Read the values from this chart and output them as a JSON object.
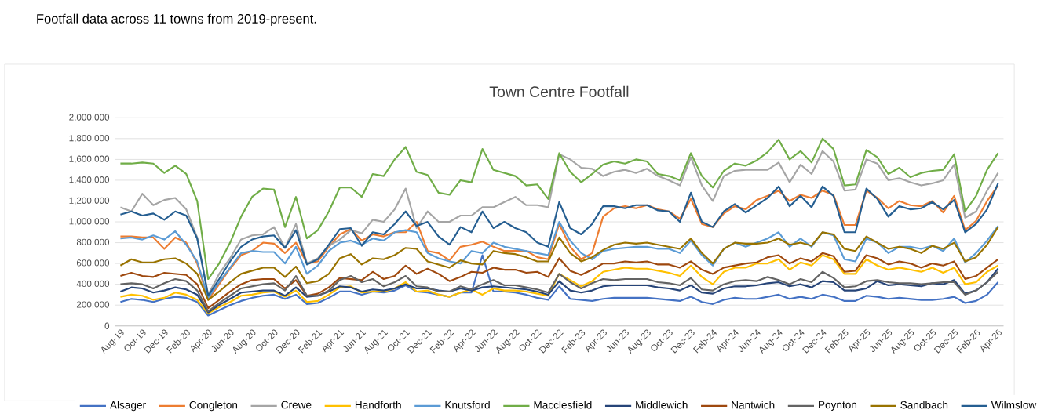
{
  "chart_data": {
    "type": "line",
    "title": "Town Centre Footfall",
    "annotations": [
      "Footfall data across 11 towns from 2019-present."
    ],
    "categories": [
      "Aug-19",
      null,
      "Oct-19",
      null,
      "Dec-19",
      null,
      "Feb-20",
      null,
      "Apr-20",
      null,
      "Jun-20",
      null,
      "Aug-20",
      null,
      "Oct-20",
      null,
      "Dec-20",
      null,
      "Feb-21",
      null,
      "Apr-21",
      null,
      "Jun-21",
      null,
      "Aug-21",
      null,
      "Oct-21",
      null,
      "Dec-21",
      null,
      "Feb-22",
      null,
      "Apr-22",
      null,
      "Jun-22",
      null,
      "Aug-22",
      null,
      "Oct-22",
      null,
      "Dec-22",
      null,
      "Feb-23",
      null,
      "Apr-23",
      null,
      "Jun-23",
      null,
      "Aug-23",
      null,
      "Oct-23",
      null,
      "Dec-23",
      null,
      "Feb-24",
      null,
      "Apr-24",
      null,
      "Jun-24",
      null,
      "Aug-24",
      null,
      "Oct-24",
      null,
      "Dec-24",
      null,
      "Feb-25",
      null,
      "Apr-25",
      null,
      "Jun-25",
      null,
      "Aug-25",
      null,
      "Oct-25",
      null,
      "Dec-25",
      null,
      "Feb-26",
      null,
      "Apr-26"
    ],
    "ylim": [
      0,
      2000000
    ],
    "yticks": [
      0,
      {
        "value": 200000,
        "label": "200,000"
      },
      {
        "value": 400000,
        "label": "400,000"
      },
      {
        "value": 600000,
        "label": "600,000"
      },
      {
        "value": 800000,
        "label": "800,000"
      },
      {
        "value": 1000000,
        "label": "1,000,000"
      },
      {
        "value": 1200000,
        "label": "1,200,000"
      },
      {
        "value": 1400000,
        "label": "1,400,000"
      },
      {
        "value": 1600000,
        "label": "1,600,000"
      },
      {
        "value": 1800000,
        "label": "1,800,000"
      },
      {
        "value": 2000000,
        "label": "2,000,000"
      }
    ],
    "grid": "y",
    "legend": "bottom",
    "line_style": "solid",
    "series": [
      {
        "name": "Alsager",
        "color": "#4472c4",
        "values": [
          230000.0,
          260000.0,
          250000.0,
          230000.0,
          260000.0,
          280000.0,
          270000.0,
          230000.0,
          100000.0,
          150000.0,
          200000.0,
          240000.0,
          270000.0,
          290000.0,
          300000.0,
          260000.0,
          300000.0,
          210000.0,
          220000.0,
          270000.0,
          330000.0,
          330000.0,
          300000.0,
          330000.0,
          320000.0,
          340000.0,
          390000.0,
          330000.0,
          320000.0,
          300000.0,
          280000.0,
          320000.0,
          320000.0,
          680000.0,
          330000.0,
          330000.0,
          320000.0,
          300000.0,
          270000.0,
          250000.0,
          380000.0,
          260000.0,
          250000.0,
          240000.0,
          260000.0,
          270000.0,
          270000.0,
          270000.0,
          270000.0,
          260000.0,
          250000.0,
          240000.0,
          280000.0,
          230000.0,
          210000.0,
          250000.0,
          270000.0,
          260000.0,
          260000.0,
          280000.0,
          300000.0,
          260000.0,
          280000.0,
          260000.0,
          300000.0,
          280000.0,
          240000.0,
          240000.0,
          290000.0,
          280000.0,
          260000.0,
          270000.0,
          260000.0,
          250000.0,
          250000.0,
          260000.0,
          280000.0,
          220000.0,
          240000.0,
          300000.0,
          420000.0
        ]
      },
      {
        "name": "Congleton",
        "color": "#ed7d31",
        "values": [
          860000.0,
          860000.0,
          850000.0,
          850000.0,
          740000.0,
          850000.0,
          800000.0,
          600000.0,
          250000.0,
          400000.0,
          550000.0,
          680000.0,
          720000.0,
          800000.0,
          790000.0,
          700000.0,
          800000.0,
          600000.0,
          620000.0,
          760000.0,
          880000.0,
          930000.0,
          820000.0,
          880000.0,
          860000.0,
          900000.0,
          900000.0,
          1000000.0,
          720000.0,
          700000.0,
          630000.0,
          760000.0,
          780000.0,
          810000.0,
          760000.0,
          720000.0,
          720000.0,
          720000.0,
          660000.0,
          640000.0,
          980000.0,
          760000.0,
          640000.0,
          700000.0,
          1050000.0,
          1130000.0,
          1150000.0,
          1130000.0,
          1160000.0,
          1120000.0,
          1100000.0,
          1030000.0,
          1220000.0,
          980000.0,
          950000.0,
          1080000.0,
          1150000.0,
          1120000.0,
          1210000.0,
          1250000.0,
          1300000.0,
          1200000.0,
          1260000.0,
          1230000.0,
          1300000.0,
          1260000.0,
          970000.0,
          970000.0,
          1300000.0,
          1230000.0,
          1130000.0,
          1200000.0,
          1160000.0,
          1150000.0,
          1200000.0,
          1090000.0,
          1250000.0,
          920000.0,
          1010000.0,
          1200000.0,
          1350000.0
        ]
      },
      {
        "name": "Crewe",
        "color": "#a5a5a5",
        "values": [
          1140000.0,
          1100000.0,
          1270000.0,
          1160000.0,
          1210000.0,
          1230000.0,
          1120000.0,
          850000.0,
          300000.0,
          500000.0,
          650000.0,
          830000.0,
          870000.0,
          880000.0,
          950000.0,
          750000.0,
          980000.0,
          600000.0,
          650000.0,
          770000.0,
          830000.0,
          920000.0,
          890000.0,
          1020000.0,
          1000000.0,
          1120000.0,
          1320000.0,
          940000.0,
          1100000.0,
          1000000.0,
          1000000.0,
          1060000.0,
          1060000.0,
          1140000.0,
          1140000.0,
          1190000.0,
          1240000.0,
          1160000.0,
          1160000.0,
          1140000.0,
          1650000.0,
          1600000.0,
          1520000.0,
          1510000.0,
          1440000.0,
          1480000.0,
          1500000.0,
          1470000.0,
          1510000.0,
          1440000.0,
          1400000.0,
          1350000.0,
          1620000.0,
          1350000.0,
          1200000.0,
          1440000.0,
          1490000.0,
          1500000.0,
          1500000.0,
          1500000.0,
          1570000.0,
          1380000.0,
          1550000.0,
          1460000.0,
          1680000.0,
          1580000.0,
          1300000.0,
          1310000.0,
          1600000.0,
          1560000.0,
          1400000.0,
          1420000.0,
          1380000.0,
          1350000.0,
          1370000.0,
          1400000.0,
          1550000.0,
          1040000.0,
          1100000.0,
          1300000.0,
          1470000.0
        ]
      },
      {
        "name": "Handforth",
        "color": "#ffc000",
        "values": [
          280000.0,
          300000.0,
          290000.0,
          250000.0,
          270000.0,
          320000.0,
          300000.0,
          250000.0,
          120000.0,
          180000.0,
          230000.0,
          290000.0,
          300000.0,
          320000.0,
          330000.0,
          280000.0,
          340000.0,
          230000.0,
          240000.0,
          300000.0,
          370000.0,
          380000.0,
          320000.0,
          330000.0,
          330000.0,
          360000.0,
          420000.0,
          330000.0,
          340000.0,
          300000.0,
          280000.0,
          320000.0,
          350000.0,
          300000.0,
          360000.0,
          340000.0,
          340000.0,
          330000.0,
          310000.0,
          290000.0,
          500000.0,
          440000.0,
          380000.0,
          430000.0,
          520000.0,
          540000.0,
          560000.0,
          550000.0,
          550000.0,
          530000.0,
          510000.0,
          480000.0,
          580000.0,
          470000.0,
          400000.0,
          520000.0,
          560000.0,
          560000.0,
          600000.0,
          600000.0,
          640000.0,
          540000.0,
          610000.0,
          580000.0,
          680000.0,
          640000.0,
          500000.0,
          500000.0,
          640000.0,
          580000.0,
          540000.0,
          560000.0,
          540000.0,
          520000.0,
          560000.0,
          510000.0,
          560000.0,
          400000.0,
          420000.0,
          520000.0,
          580000.0
        ]
      },
      {
        "name": "Knutsford",
        "color": "#5b9bd5",
        "values": [
          840000.0,
          850000.0,
          830000.0,
          870000.0,
          830000.0,
          910000.0,
          780000.0,
          620000.0,
          270000.0,
          420000.0,
          560000.0,
          700000.0,
          720000.0,
          710000.0,
          710000.0,
          600000.0,
          760000.0,
          500000.0,
          580000.0,
          720000.0,
          800000.0,
          820000.0,
          780000.0,
          840000.0,
          820000.0,
          900000.0,
          920000.0,
          900000.0,
          700000.0,
          650000.0,
          620000.0,
          600000.0,
          720000.0,
          700000.0,
          800000.0,
          760000.0,
          740000.0,
          720000.0,
          700000.0,
          680000.0,
          1000000.0,
          820000.0,
          700000.0,
          640000.0,
          720000.0,
          740000.0,
          750000.0,
          760000.0,
          760000.0,
          740000.0,
          740000.0,
          700000.0,
          820000.0,
          680000.0,
          580000.0,
          740000.0,
          800000.0,
          760000.0,
          800000.0,
          840000.0,
          900000.0,
          760000.0,
          840000.0,
          760000.0,
          900000.0,
          870000.0,
          640000.0,
          620000.0,
          840000.0,
          800000.0,
          700000.0,
          760000.0,
          760000.0,
          740000.0,
          770000.0,
          720000.0,
          840000.0,
          610000.0,
          700000.0,
          820000.0,
          960000.0
        ]
      },
      {
        "name": "Macclesfield",
        "color": "#70ad47",
        "values": [
          1560000.0,
          1560000.0,
          1570000.0,
          1560000.0,
          1470000.0,
          1540000.0,
          1460000.0,
          1200000.0,
          450000.0,
          600000.0,
          800000.0,
          1050000.0,
          1240000.0,
          1320000.0,
          1310000.0,
          950000.0,
          1240000.0,
          840000.0,
          920000.0,
          1100000.0,
          1330000.0,
          1330000.0,
          1240000.0,
          1460000.0,
          1440000.0,
          1600000.0,
          1720000.0,
          1480000.0,
          1450000.0,
          1280000.0,
          1260000.0,
          1400000.0,
          1380000.0,
          1700000.0,
          1500000.0,
          1470000.0,
          1440000.0,
          1350000.0,
          1360000.0,
          1220000.0,
          1660000.0,
          1480000.0,
          1380000.0,
          1460000.0,
          1550000.0,
          1580000.0,
          1560000.0,
          1600000.0,
          1580000.0,
          1460000.0,
          1440000.0,
          1400000.0,
          1660000.0,
          1440000.0,
          1330000.0,
          1490000.0,
          1560000.0,
          1540000.0,
          1590000.0,
          1670000.0,
          1790000.0,
          1600000.0,
          1680000.0,
          1570000.0,
          1800000.0,
          1700000.0,
          1350000.0,
          1360000.0,
          1690000.0,
          1620000.0,
          1460000.0,
          1520000.0,
          1430000.0,
          1470000.0,
          1490000.0,
          1500000.0,
          1650000.0,
          1100000.0,
          1250000.0,
          1500000.0,
          1660000.0
        ]
      },
      {
        "name": "Middlewich",
        "color": "#264478",
        "values": [
          330000.0,
          370000.0,
          360000.0,
          320000.0,
          340000.0,
          370000.0,
          350000.0,
          300000.0,
          130000.0,
          200000.0,
          260000.0,
          320000.0,
          330000.0,
          340000.0,
          340000.0,
          290000.0,
          370000.0,
          280000.0,
          290000.0,
          330000.0,
          380000.0,
          370000.0,
          330000.0,
          350000.0,
          340000.0,
          360000.0,
          400000.0,
          360000.0,
          360000.0,
          340000.0,
          330000.0,
          360000.0,
          340000.0,
          370000.0,
          380000.0,
          370000.0,
          360000.0,
          350000.0,
          330000.0,
          300000.0,
          430000.0,
          340000.0,
          320000.0,
          340000.0,
          380000.0,
          390000.0,
          390000.0,
          390000.0,
          390000.0,
          370000.0,
          360000.0,
          340000.0,
          390000.0,
          320000.0,
          310000.0,
          360000.0,
          380000.0,
          380000.0,
          390000.0,
          410000.0,
          420000.0,
          380000.0,
          400000.0,
          370000.0,
          430000.0,
          420000.0,
          340000.0,
          340000.0,
          360000.0,
          430000.0,
          390000.0,
          400000.0,
          390000.0,
          380000.0,
          410000.0,
          400000.0,
          440000.0,
          310000.0,
          340000.0,
          420000.0,
          550000.0
        ]
      },
      {
        "name": "Nantwich",
        "color": "#9e480e",
        "values": [
          480000.0,
          510000.0,
          480000.0,
          470000.0,
          510000.0,
          500000.0,
          490000.0,
          400000.0,
          170000.0,
          250000.0,
          330000.0,
          400000.0,
          440000.0,
          450000.0,
          450000.0,
          360000.0,
          440000.0,
          290000.0,
          310000.0,
          370000.0,
          460000.0,
          450000.0,
          440000.0,
          520000.0,
          450000.0,
          480000.0,
          580000.0,
          500000.0,
          550000.0,
          500000.0,
          430000.0,
          470000.0,
          520000.0,
          510000.0,
          560000.0,
          540000.0,
          540000.0,
          510000.0,
          520000.0,
          470000.0,
          650000.0,
          530000.0,
          490000.0,
          540000.0,
          600000.0,
          600000.0,
          620000.0,
          610000.0,
          620000.0,
          590000.0,
          590000.0,
          560000.0,
          620000.0,
          540000.0,
          500000.0,
          560000.0,
          580000.0,
          600000.0,
          610000.0,
          660000.0,
          680000.0,
          600000.0,
          650000.0,
          620000.0,
          700000.0,
          670000.0,
          520000.0,
          530000.0,
          680000.0,
          650000.0,
          590000.0,
          620000.0,
          600000.0,
          560000.0,
          600000.0,
          580000.0,
          620000.0,
          450000.0,
          480000.0,
          560000.0,
          640000.0
        ]
      },
      {
        "name": "Poynton",
        "color": "#636363",
        "values": [
          400000.0,
          410000.0,
          400000.0,
          360000.0,
          410000.0,
          450000.0,
          430000.0,
          340000.0,
          140000.0,
          220000.0,
          290000.0,
          360000.0,
          380000.0,
          400000.0,
          410000.0,
          340000.0,
          480000.0,
          290000.0,
          290000.0,
          340000.0,
          440000.0,
          480000.0,
          420000.0,
          450000.0,
          380000.0,
          420000.0,
          480000.0,
          380000.0,
          370000.0,
          330000.0,
          330000.0,
          380000.0,
          350000.0,
          400000.0,
          440000.0,
          390000.0,
          390000.0,
          370000.0,
          350000.0,
          320000.0,
          500000.0,
          420000.0,
          360000.0,
          410000.0,
          450000.0,
          440000.0,
          450000.0,
          450000.0,
          450000.0,
          420000.0,
          410000.0,
          390000.0,
          460000.0,
          350000.0,
          340000.0,
          400000.0,
          430000.0,
          440000.0,
          430000.0,
          470000.0,
          440000.0,
          400000.0,
          450000.0,
          420000.0,
          520000.0,
          460000.0,
          370000.0,
          380000.0,
          430000.0,
          440000.0,
          420000.0,
          410000.0,
          410000.0,
          400000.0,
          410000.0,
          420000.0,
          420000.0,
          300000.0,
          340000.0,
          420000.0,
          520000.0
        ]
      },
      {
        "name": "Sandbach",
        "color": "#997300",
        "values": [
          580000.0,
          640000.0,
          610000.0,
          610000.0,
          640000.0,
          650000.0,
          600000.0,
          500000.0,
          250000.0,
          330000.0,
          420000.0,
          500000.0,
          530000.0,
          560000.0,
          560000.0,
          470000.0,
          570000.0,
          410000.0,
          430000.0,
          500000.0,
          650000.0,
          690000.0,
          590000.0,
          650000.0,
          640000.0,
          680000.0,
          750000.0,
          740000.0,
          620000.0,
          590000.0,
          560000.0,
          630000.0,
          600000.0,
          590000.0,
          720000.0,
          700000.0,
          690000.0,
          660000.0,
          620000.0,
          620000.0,
          850000.0,
          700000.0,
          620000.0,
          660000.0,
          730000.0,
          780000.0,
          800000.0,
          790000.0,
          800000.0,
          780000.0,
          760000.0,
          740000.0,
          840000.0,
          700000.0,
          600000.0,
          740000.0,
          800000.0,
          790000.0,
          790000.0,
          800000.0,
          840000.0,
          780000.0,
          800000.0,
          770000.0,
          900000.0,
          880000.0,
          740000.0,
          720000.0,
          860000.0,
          800000.0,
          740000.0,
          760000.0,
          740000.0,
          700000.0,
          770000.0,
          740000.0,
          800000.0,
          620000.0,
          660000.0,
          780000.0,
          950000.0
        ]
      },
      {
        "name": "Wilmslow",
        "color": "#255e91",
        "values": [
          1070000.0,
          1100000.0,
          1060000.0,
          1080000.0,
          1020000.0,
          1100000.0,
          1060000.0,
          840000.0,
          290000.0,
          450000.0,
          620000.0,
          760000.0,
          830000.0,
          860000.0,
          870000.0,
          750000.0,
          920000.0,
          590000.0,
          640000.0,
          780000.0,
          930000.0,
          940000.0,
          770000.0,
          900000.0,
          880000.0,
          980000.0,
          1100000.0,
          960000.0,
          1000000.0,
          860000.0,
          780000.0,
          950000.0,
          900000.0,
          1100000.0,
          940000.0,
          1000000.0,
          940000.0,
          900000.0,
          800000.0,
          760000.0,
          1190000.0,
          940000.0,
          880000.0,
          980000.0,
          1150000.0,
          1150000.0,
          1130000.0,
          1160000.0,
          1160000.0,
          1110000.0,
          1100000.0,
          1000000.0,
          1280000.0,
          1000000.0,
          950000.0,
          1100000.0,
          1170000.0,
          1090000.0,
          1160000.0,
          1230000.0,
          1340000.0,
          1150000.0,
          1250000.0,
          1140000.0,
          1340000.0,
          1250000.0,
          900000.0,
          900000.0,
          1320000.0,
          1220000.0,
          1050000.0,
          1150000.0,
          1120000.0,
          1130000.0,
          1190000.0,
          1120000.0,
          1210000.0,
          900000.0,
          980000.0,
          1120000.0,
          1370000.0
        ]
      }
    ]
  }
}
